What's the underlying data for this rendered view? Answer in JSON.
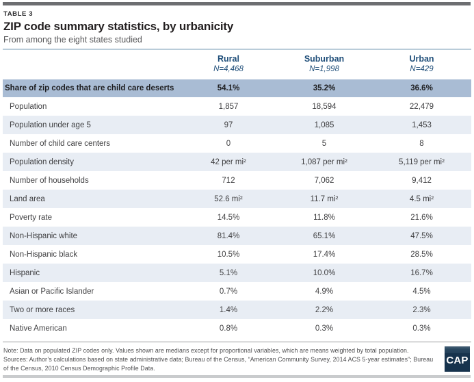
{
  "chart_data": {
    "type": "table",
    "table_label": "TABLE 3",
    "title": "ZIP code summary statistics, by urbanicity",
    "subtitle": "From among the eight states studied",
    "columns": [
      "Rural",
      "Suburban",
      "Urban"
    ],
    "column_n": [
      "N=4,468",
      "N=1,998",
      "N=429"
    ],
    "rows": [
      {
        "label": "Share of zip codes that are child care deserts",
        "values": [
          "54.1%",
          "35.2%",
          "36.6%"
        ],
        "highlight": true
      },
      {
        "label": "Population",
        "values": [
          "1,857",
          "18,594",
          "22,479"
        ]
      },
      {
        "label": "Population under age 5",
        "values": [
          "97",
          "1,085",
          "1,453"
        ]
      },
      {
        "label": "Number of child care centers",
        "values": [
          "0",
          "5",
          "8"
        ]
      },
      {
        "label": "Population density",
        "values": [
          "42 per mi²",
          "1,087 per mi²",
          "5,119 per mi²"
        ]
      },
      {
        "label": "Number of households",
        "values": [
          "712",
          "7,062",
          "9,412"
        ]
      },
      {
        "label": "Land area",
        "values": [
          "52.6 mi²",
          "11.7 mi²",
          "4.5 mi²"
        ]
      },
      {
        "label": "Poverty rate",
        "values": [
          "14.5%",
          "11.8%",
          "21.6%"
        ]
      },
      {
        "label": "Non-Hispanic white",
        "values": [
          "81.4%",
          "65.1%",
          "47.5%"
        ]
      },
      {
        "label": "Non-Hispanic black",
        "values": [
          "10.5%",
          "17.4%",
          "28.5%"
        ]
      },
      {
        "label": "Hispanic",
        "values": [
          "5.1%",
          "10.0%",
          "16.7%"
        ]
      },
      {
        "label": "Asian or Pacific Islander",
        "values": [
          "0.7%",
          "4.9%",
          "4.5%"
        ]
      },
      {
        "label": "Two or more races",
        "values": [
          "1.4%",
          "2.2%",
          "2.3%"
        ]
      },
      {
        "label": "Native American",
        "values": [
          "0.8%",
          "0.3%",
          "0.3%"
        ]
      }
    ]
  },
  "footer": {
    "note": "Note: Data on populated ZIP codes only. Values shown are medians except for proportional variables, which are means weighted by total population.",
    "sources": "Sources: Author’s calculations based on state administrative data; Bureau of the Census, “American Community Survey, 2014 ACS 5-year estimates”; Bureau of the Census, 2010 Census Demographic Profile Data.",
    "logo_text": "CAP"
  },
  "colors": {
    "header_text_blue": "#1f4e79",
    "highlight_row_bg": "#a9bcd4",
    "stripe_row_bg": "#e8edf4",
    "top_bar_gray": "#6d6e71",
    "logo_navy": "#17334d"
  }
}
